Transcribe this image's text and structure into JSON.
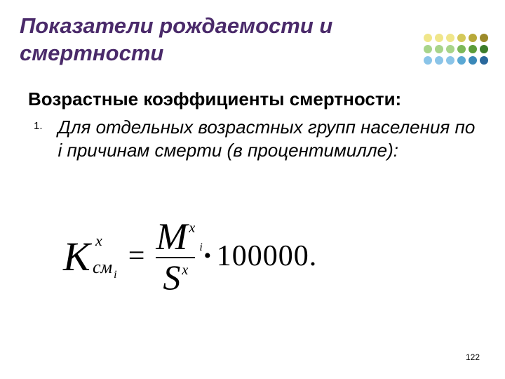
{
  "title_color": "#4a2a6a",
  "title_fontsize": 31,
  "title_line1": "Показатели рождаемости и",
  "title_line2": "смертности",
  "subtitle": "Возрастные коэффициенты смертности:",
  "subtitle_fontsize": 26,
  "list_number": "1.",
  "list_text": "Для отдельных возрастных групп населения по i причинам смерти (в процентимилле):",
  "list_fontsize": 26,
  "formula": {
    "K": "K",
    "K_sup": "x",
    "K_sub": "см",
    "K_sub_i": "i",
    "eq": "=",
    "M": "M",
    "M_sup": "x",
    "M_sub_i": "i",
    "S": "S",
    "S_sup": "x",
    "bullet": "•",
    "const": "100000",
    "period": "."
  },
  "page_number": "122",
  "dots": {
    "colors": [
      "#f0e68a",
      "#f0e68a",
      "#f0e68a",
      "#d4c95a",
      "#b8a93a",
      "#9c8a2a",
      "#a8d48a",
      "#a8d48a",
      "#a8d48a",
      "#7cb85a",
      "#5c9c3a",
      "#3c7c2a",
      "#8ac4e8",
      "#8ac4e8",
      "#8ac4e8",
      "#5aa8d4",
      "#3a88b8",
      "#2a689c"
    ]
  }
}
